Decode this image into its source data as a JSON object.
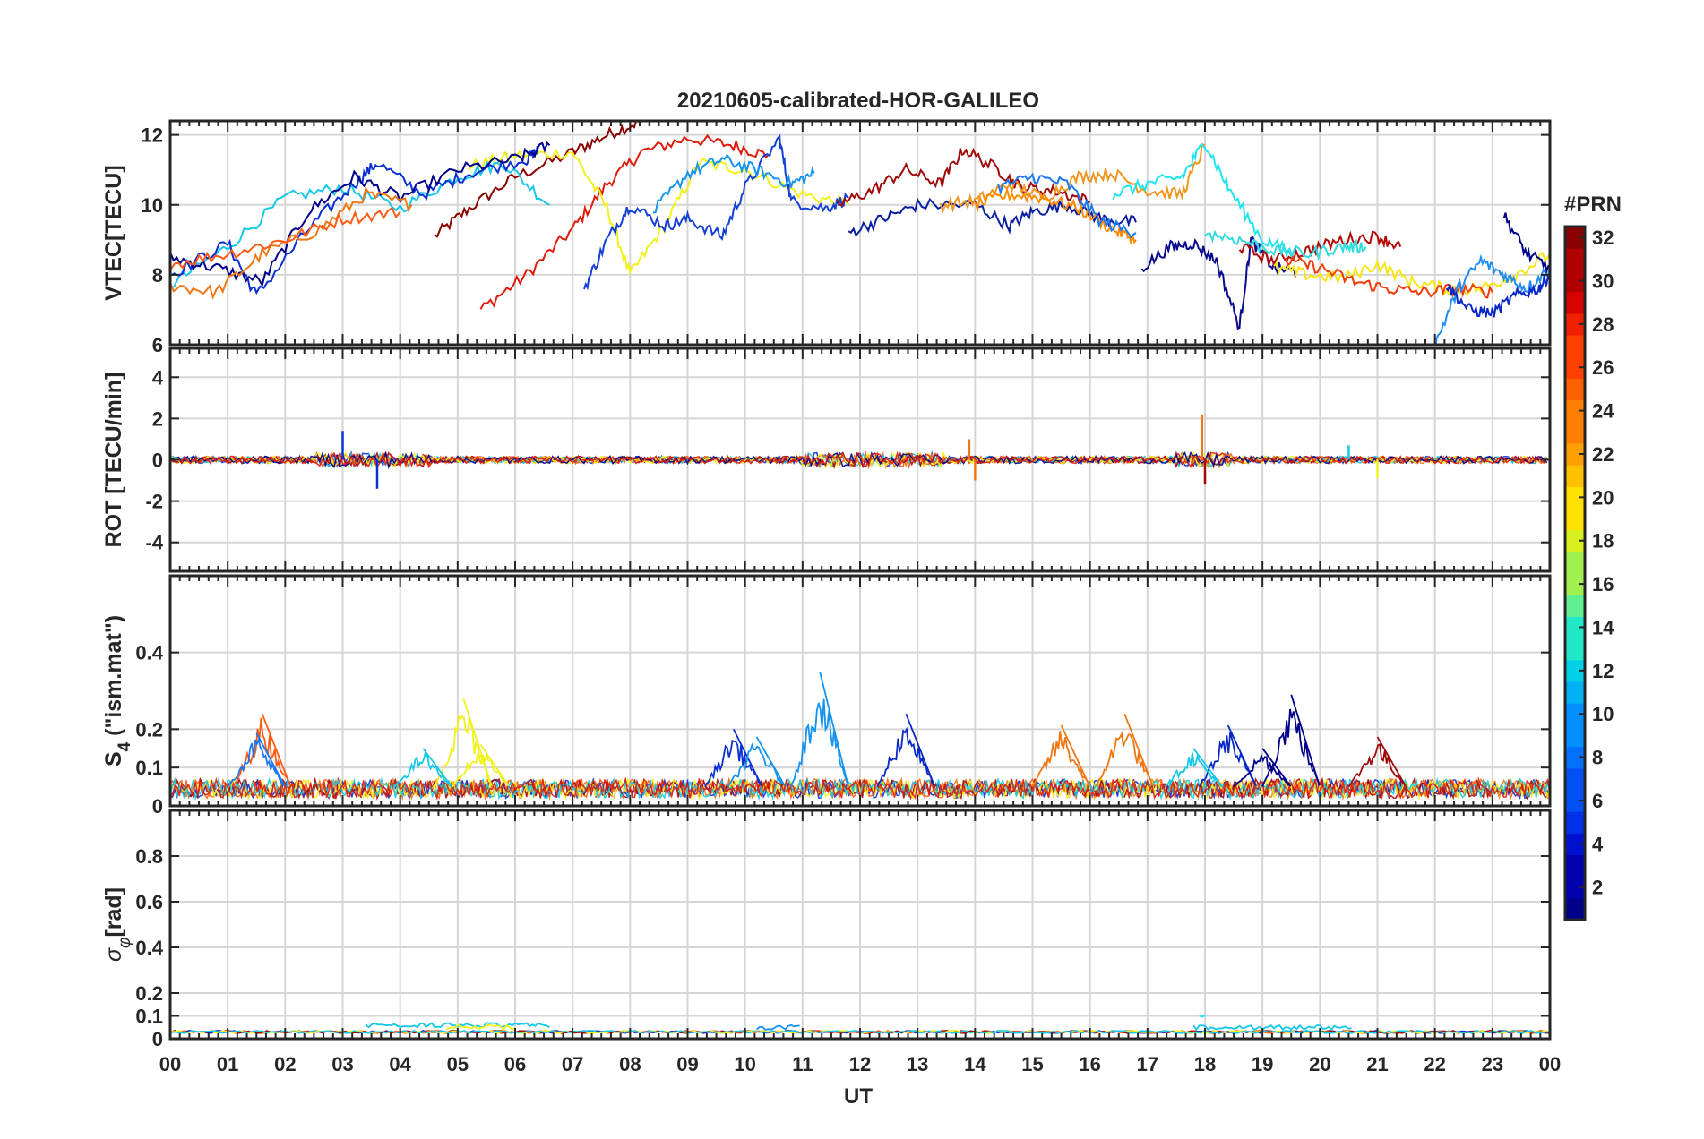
{
  "chart_data": [
    {
      "type": "line",
      "panel": "vtec",
      "title": "20210605-calibrated-HOR-GALILEO",
      "ylabel": "VTEC[TECU]",
      "ylim": [
        6,
        12.4
      ],
      "yticks": [
        6,
        8,
        10,
        12
      ],
      "ytick_labels": [
        "6",
        "8",
        "10",
        "12"
      ],
      "xlim": [
        0,
        24
      ],
      "x_unit": "hours UT",
      "grid": true,
      "series": [
        {
          "name": "PRN 31",
          "color": "#8b0000",
          "x": [
            4.6,
            5.2,
            6.0,
            7.0,
            7.6,
            8.2
          ],
          "y": [
            9.1,
            9.9,
            10.8,
            11.5,
            12.0,
            12.4
          ]
        },
        {
          "name": "PRN 27",
          "color": "#e01b0b",
          "x": [
            5.4,
            6.2,
            7.0,
            7.6,
            8.2,
            9.0,
            9.8,
            10.4
          ],
          "y": [
            7.0,
            8.0,
            9.3,
            10.6,
            11.5,
            11.9,
            11.7,
            11.4
          ]
        },
        {
          "name": "PRN 20",
          "color": "#f2f21a",
          "x": [
            5.2,
            6.0,
            7.0,
            7.6,
            8.0,
            8.6,
            9.2,
            10.0,
            11.0,
            11.8
          ],
          "y": [
            11.1,
            11.4,
            11.5,
            9.9,
            8.0,
            9.4,
            11.2,
            11.0,
            10.3,
            10.0
          ]
        },
        {
          "name": "PRN 12",
          "color": "#14c8e6",
          "x": [
            0.0,
            1.0,
            2.0,
            3.0,
            4.0,
            5.0,
            5.8,
            6.6
          ],
          "y": [
            7.7,
            8.8,
            10.2,
            10.5,
            9.9,
            10.8,
            11.2,
            10.0
          ]
        },
        {
          "name": "PRN 4",
          "color": "#0a2fd2",
          "x": [
            0.0,
            1.0,
            1.5,
            2.4,
            3.2,
            3.6,
            4.4,
            5.2,
            6.2,
            6.4
          ],
          "y": [
            8.0,
            8.9,
            7.4,
            9.3,
            10.6,
            11.2,
            10.3,
            10.9,
            11.3,
            11.6
          ]
        },
        {
          "name": "PRN 1",
          "color": "#00008b",
          "x": [
            0.0,
            0.8,
            1.6,
            2.4,
            3.2,
            4.0,
            5.0,
            6.0,
            6.6
          ],
          "y": [
            8.5,
            8.2,
            7.8,
            9.8,
            10.8,
            10.2,
            11.0,
            11.3,
            11.7
          ]
        },
        {
          "name": "PRN 24",
          "color": "#f07814",
          "x": [
            0.0,
            0.8,
            1.6,
            2.6,
            3.4,
            4.2
          ],
          "y": [
            7.7,
            7.5,
            8.6,
            9.3,
            10.3,
            10.0
          ]
        },
        {
          "name": "PRN 25",
          "color": "#ff5a14",
          "x": [
            0.0,
            1.0,
            2.0,
            3.0,
            4.0
          ],
          "y": [
            8.3,
            8.6,
            9.0,
            9.6,
            9.8
          ]
        },
        {
          "name": "PRN 5",
          "color": "#1440d8",
          "x": [
            7.2,
            7.6,
            8.0,
            8.6,
            9.0,
            9.6,
            10.0,
            10.6,
            10.8,
            11.4,
            11.8
          ],
          "y": [
            7.6,
            9.0,
            10.0,
            9.4,
            9.6,
            9.1,
            10.5,
            11.9,
            10.1,
            9.9,
            10.2
          ]
        },
        {
          "name": "PRN 10",
          "color": "#1494f0",
          "x": [
            8.4,
            9.0,
            9.6,
            10.2,
            10.8,
            11.2
          ],
          "y": [
            9.8,
            10.9,
            11.3,
            11.0,
            10.6,
            10.9
          ]
        },
        {
          "name": "PRN 3",
          "color": "#0a1ea0",
          "x": [
            11.8,
            12.4,
            13.0,
            14.0,
            14.6,
            15.0,
            15.6,
            16.2,
            16.8
          ],
          "y": [
            9.2,
            9.6,
            10.0,
            10.0,
            9.4,
            9.8,
            10.0,
            9.6,
            9.5
          ]
        },
        {
          "name": "PRN 30",
          "color": "#a00a0a",
          "x": [
            11.6,
            12.2,
            12.8,
            13.4,
            13.8,
            14.4,
            14.8,
            15.4,
            16.0
          ],
          "y": [
            10.0,
            10.4,
            11.0,
            10.6,
            11.6,
            11.0,
            10.5,
            10.4,
            10.1
          ]
        },
        {
          "name": "PRN 23",
          "color": "#f0961e",
          "x": [
            13.4,
            14.0,
            14.6,
            15.2,
            15.8,
            16.4,
            17.0,
            17.6,
            18.0
          ],
          "y": [
            10.0,
            10.1,
            10.6,
            10.2,
            10.8,
            10.9,
            10.4,
            10.3,
            11.7
          ]
        },
        {
          "name": "PRN 22",
          "color": "#ff8c00",
          "x": [
            14.0,
            14.6,
            15.2,
            15.8,
            16.4,
            16.8
          ],
          "y": [
            10.0,
            10.3,
            10.2,
            9.9,
            9.3,
            9.0
          ]
        },
        {
          "name": "PRN 8",
          "color": "#1e78f0",
          "x": [
            14.4,
            15.0,
            15.6,
            16.2,
            16.8
          ],
          "y": [
            10.5,
            10.8,
            10.6,
            9.5,
            9.2
          ]
        },
        {
          "name": "PRN 13",
          "color": "#1ee6f0",
          "x": [
            16.4,
            17.0,
            17.6,
            18.0,
            18.4,
            19.0,
            19.6
          ],
          "y": [
            10.3,
            10.6,
            10.8,
            11.8,
            10.5,
            9.0,
            8.6
          ]
        },
        {
          "name": "PRN 2",
          "color": "#0a0a8c",
          "x": [
            16.9,
            17.4,
            17.8,
            18.2,
            18.6,
            18.8,
            19.2,
            19.6
          ],
          "y": [
            8.2,
            8.8,
            8.9,
            8.4,
            6.5,
            9.0,
            8.2,
            8.1
          ]
        },
        {
          "name": "PRN 29",
          "color": "#b40a0a",
          "x": [
            18.6,
            19.2,
            19.8,
            20.4,
            21.0,
            21.4
          ],
          "y": [
            8.8,
            8.4,
            8.7,
            9.0,
            9.1,
            8.8
          ]
        },
        {
          "name": "PRN 21",
          "color": "#fae614",
          "x": [
            19.2,
            19.8,
            20.4,
            21.0,
            21.6,
            22.2,
            22.8,
            23.4,
            24.0
          ],
          "y": [
            8.2,
            8.0,
            7.9,
            8.3,
            7.8,
            7.6,
            7.6,
            8.0,
            8.6
          ]
        },
        {
          "name": "PRN 26",
          "color": "#f03c0a",
          "x": [
            19.4,
            20.0,
            20.6,
            21.2,
            21.8,
            22.4,
            23.0
          ],
          "y": [
            8.4,
            8.2,
            7.8,
            7.6,
            7.5,
            7.6,
            7.5
          ]
        },
        {
          "name": "PRN 14",
          "color": "#32dcdc",
          "x": [
            18.0,
            18.6,
            19.2,
            19.8,
            20.4,
            20.8
          ],
          "y": [
            9.2,
            9.0,
            8.7,
            8.6,
            8.8,
            8.8
          ]
        },
        {
          "name": "PRN 9",
          "color": "#1e8cf0",
          "x": [
            22.0,
            22.4,
            22.8,
            23.2,
            23.6,
            24.0
          ],
          "y": [
            6.0,
            7.6,
            8.4,
            8.0,
            7.6,
            8.2
          ]
        },
        {
          "name": "PRN 6",
          "color": "#0a28c8",
          "x": [
            22.2,
            22.6,
            23.0,
            23.4,
            23.8,
            24.0
          ],
          "y": [
            7.7,
            7.0,
            6.9,
            7.4,
            7.6,
            8.0
          ]
        },
        {
          "name": "PRN 1b",
          "color": "#00008b",
          "x": [
            23.2,
            23.6,
            24.0
          ],
          "y": [
            9.7,
            8.6,
            8.2
          ]
        }
      ]
    },
    {
      "type": "line",
      "panel": "rot",
      "ylabel": "ROT [TECU/min]",
      "ylim": [
        -5.4,
        5.4
      ],
      "yticks": [
        -4,
        -2,
        0,
        2,
        4
      ],
      "ytick_labels": [
        "-4",
        "-2",
        "0",
        "2",
        "4"
      ],
      "xlim": [
        0,
        24
      ],
      "grid": true,
      "description_values": {
        "baseline": 0,
        "typical_amplitude": 0.5
      },
      "spikes": [
        {
          "x": 3.0,
          "y": 1.4,
          "color": "#0a2fd2"
        },
        {
          "x": 3.6,
          "y": -1.4,
          "color": "#0a2fd2"
        },
        {
          "x": 13.9,
          "y": 1.0,
          "color": "#f07814"
        },
        {
          "x": 14.0,
          "y": -1.0,
          "color": "#f07814"
        },
        {
          "x": 17.95,
          "y": 2.2,
          "color": "#f07814"
        },
        {
          "x": 18.0,
          "y": -1.2,
          "color": "#a00a0a"
        },
        {
          "x": 20.5,
          "y": 0.7,
          "color": "#14c8e6"
        },
        {
          "x": 21.0,
          "y": -0.9,
          "color": "#f2f21a"
        }
      ]
    },
    {
      "type": "line",
      "panel": "s4",
      "ylabel": "S4 (\"ism.mat\")",
      "ylabel_parts": {
        "main": "S",
        "sub": "4",
        "rest": " (\"ism.mat\")"
      },
      "ylim": [
        0,
        0.6
      ],
      "yticks": [
        0,
        0.1,
        0.2,
        0.4
      ],
      "ytick_labels": [
        "0",
        "0.1",
        "0.2",
        "0.4"
      ],
      "xlim": [
        0,
        24
      ],
      "grid": true,
      "baseline": 0.04,
      "spikes": [
        {
          "x": 1.6,
          "y": 0.24,
          "color": "#ff5a14"
        },
        {
          "x": 1.5,
          "y": 0.19,
          "color": "#1e78f0"
        },
        {
          "x": 5.1,
          "y": 0.28,
          "color": "#f2f21a"
        },
        {
          "x": 5.4,
          "y": 0.16,
          "color": "#f2f21a"
        },
        {
          "x": 4.4,
          "y": 0.15,
          "color": "#14c8e6"
        },
        {
          "x": 9.8,
          "y": 0.2,
          "color": "#0a2fd2"
        },
        {
          "x": 10.2,
          "y": 0.18,
          "color": "#1494f0"
        },
        {
          "x": 11.3,
          "y": 0.35,
          "color": "#1494f0"
        },
        {
          "x": 12.8,
          "y": 0.24,
          "color": "#0a28c8"
        },
        {
          "x": 15.5,
          "y": 0.21,
          "color": "#f07814"
        },
        {
          "x": 16.6,
          "y": 0.24,
          "color": "#f07814"
        },
        {
          "x": 18.4,
          "y": 0.21,
          "color": "#0a28c8"
        },
        {
          "x": 19.5,
          "y": 0.29,
          "color": "#00008b"
        },
        {
          "x": 19.0,
          "y": 0.15,
          "color": "#00008b"
        },
        {
          "x": 21.0,
          "y": 0.18,
          "color": "#a00a0a"
        },
        {
          "x": 17.8,
          "y": 0.15,
          "color": "#14c8e6"
        }
      ]
    },
    {
      "type": "line",
      "panel": "sigma_phi",
      "ylabel": "σφ[rad]",
      "ylabel_parts": {
        "main": "σ",
        "sub": "φ",
        "rest": "[rad]"
      },
      "ylim": [
        0,
        1.0
      ],
      "yticks": [
        0,
        0.1,
        0.2,
        0.4,
        0.6,
        0.8
      ],
      "ytick_labels": [
        "0",
        "0.1",
        "0.2",
        "0.4",
        "0.6",
        "0.8"
      ],
      "xlim": [
        0,
        24
      ],
      "grid": true,
      "baseline": 0.03,
      "bumps": [
        {
          "x0": 3.4,
          "x1": 6.6,
          "y": 0.07,
          "color": "#14c8e6"
        },
        {
          "x0": 4.8,
          "x1": 6.0,
          "y": 0.06,
          "color": "#f2f21a"
        },
        {
          "x0": 10.2,
          "x1": 11.0,
          "y": 0.06,
          "color": "#1494f0"
        },
        {
          "x0": 17.8,
          "x1": 20.6,
          "y": 0.06,
          "color": "#14c8e6"
        },
        {
          "x0": 17.9,
          "x1": 18.0,
          "y": 0.11,
          "color": "#1ee6f0"
        }
      ]
    }
  ],
  "xaxis": {
    "label": "UT",
    "tick_labels": [
      "00",
      "01",
      "02",
      "03",
      "04",
      "05",
      "06",
      "07",
      "08",
      "09",
      "10",
      "11",
      "12",
      "13",
      "14",
      "15",
      "16",
      "17",
      "18",
      "19",
      "20",
      "21",
      "22",
      "23",
      "00"
    ]
  },
  "colorbar": {
    "title": "#PRN",
    "range": [
      1,
      32
    ],
    "tick_labels": [
      "2",
      "4",
      "6",
      "8",
      "10",
      "12",
      "14",
      "16",
      "18",
      "20",
      "22",
      "24",
      "26",
      "28",
      "30",
      "32"
    ],
    "colors": [
      "#00008b",
      "#0000b0",
      "#0010d0",
      "#0030e8",
      "#0050f5",
      "#0070ff",
      "#0090ff",
      "#00b0f5",
      "#00d0e8",
      "#20e8c8",
      "#60f090",
      "#a0f050",
      "#d8f020",
      "#ffe000",
      "#ffc000",
      "#ffa000",
      "#ff8000",
      "#ff6000",
      "#ff4000",
      "#f02000",
      "#d80000",
      "#b00000",
      "#8b0000"
    ]
  }
}
